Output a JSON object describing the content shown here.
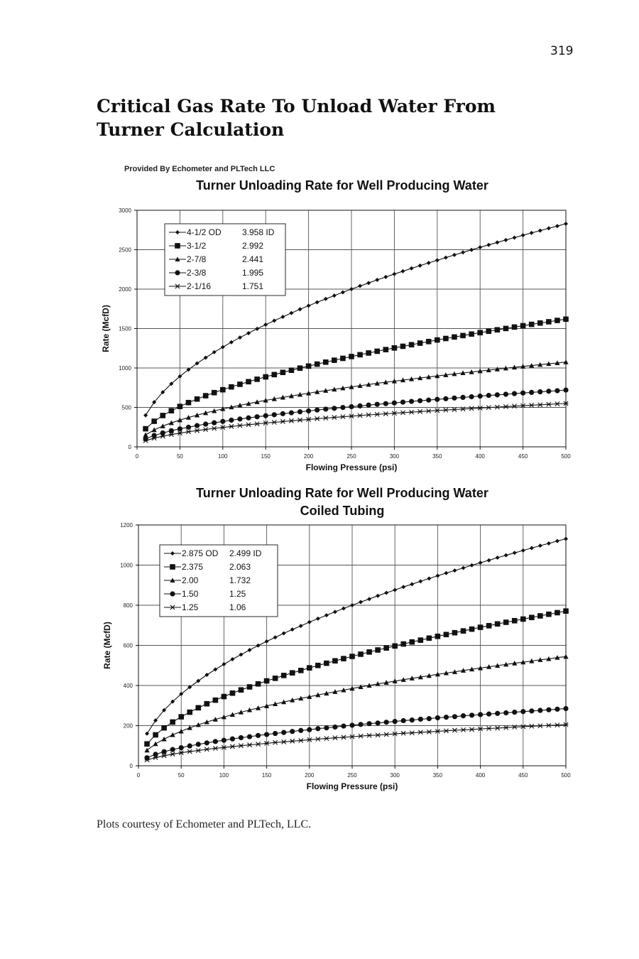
{
  "page": {
    "number": "319",
    "title": "Critical Gas Rate To Unload Water From Turner Calculation",
    "provided_by": "Provided By Echometer and PLTech LLC",
    "caption": "Plots courtesy of Echometer and PLTech, LLC."
  },
  "colors": {
    "ink": "#111111",
    "grid": "#555555",
    "background": "#ffffff"
  },
  "chart_data": [
    {
      "type": "line",
      "title": "Turner Unloading Rate for Well Producing Water",
      "subtitle": "",
      "xlabel": "Flowing Pressure (psi)",
      "ylabel": "Rate (McfD)",
      "xlim": [
        0,
        500
      ],
      "ylim": [
        0,
        3000
      ],
      "xticks": [
        0,
        50,
        100,
        150,
        200,
        250,
        300,
        350,
        400,
        450,
        500
      ],
      "yticks": [
        0,
        500,
        1000,
        1500,
        2000,
        2500,
        3000
      ],
      "grid": true,
      "legend_position": "top-left",
      "x": [
        10,
        20,
        30,
        40,
        50,
        60,
        70,
        80,
        90,
        100,
        110,
        120,
        130,
        140,
        150,
        160,
        170,
        180,
        190,
        200,
        210,
        220,
        230,
        240,
        250,
        260,
        270,
        280,
        290,
        300,
        310,
        320,
        330,
        340,
        350,
        360,
        370,
        380,
        390,
        400,
        410,
        420,
        430,
        440,
        450,
        460,
        470,
        480,
        490,
        500
      ],
      "series": [
        {
          "name": "4-1/2 OD",
          "id_label": "3.958 ID",
          "marker": "diamond",
          "values": [
            400,
            566,
            693,
            800,
            894,
            979,
            1058,
            1131,
            1200,
            1265,
            1327,
            1386,
            1442,
            1497,
            1549,
            1600,
            1649,
            1697,
            1744,
            1789,
            1833,
            1876,
            1918,
            1960,
            2000,
            2040,
            2078,
            2117,
            2154,
            2191,
            2227,
            2263,
            2298,
            2332,
            2366,
            2400,
            2433,
            2466,
            2498,
            2530,
            2561,
            2592,
            2623,
            2653,
            2683,
            2713,
            2742,
            2771,
            2800,
            2829
          ]
        },
        {
          "name": "3-1/2",
          "id_label": "2.992",
          "marker": "square",
          "values": [
            229,
            324,
            397,
            458,
            512,
            561,
            606,
            648,
            687,
            724,
            760,
            793,
            826,
            857,
            887,
            916,
            944,
            971,
            998,
            1024,
            1049,
            1074,
            1098,
            1122,
            1145,
            1168,
            1190,
            1212,
            1233,
            1254,
            1275,
            1295,
            1315,
            1335,
            1355,
            1374,
            1393,
            1411,
            1430,
            1448,
            1466,
            1484,
            1501,
            1519,
            1536,
            1553,
            1570,
            1586,
            1603,
            1619
          ]
        },
        {
          "name": "2-7/8",
          "id_label": "2.441",
          "marker": "triangle",
          "values": [
            152,
            215,
            263,
            304,
            340,
            372,
            402,
            430,
            456,
            481,
            504,
            527,
            548,
            569,
            589,
            608,
            627,
            645,
            663,
            680,
            697,
            713,
            729,
            745,
            760,
            775,
            790,
            805,
            819,
            833,
            846,
            860,
            873,
            886,
            899,
            912,
            925,
            937,
            949,
            961,
            973,
            985,
            997,
            1008,
            1020,
            1031,
            1042,
            1053,
            1064,
            1075
          ]
        },
        {
          "name": "2-3/8",
          "id_label": "1.995",
          "marker": "circle",
          "values": [
            102,
            144,
            176,
            204,
            228,
            249,
            269,
            288,
            305,
            322,
            338,
            353,
            367,
            381,
            394,
            407,
            420,
            432,
            444,
            455,
            467,
            478,
            488,
            499,
            509,
            519,
            529,
            539,
            548,
            557,
            567,
            576,
            585,
            593,
            602,
            610,
            619,
            627,
            635,
            643,
            652,
            659,
            667,
            675,
            683,
            690,
            698,
            705,
            712,
            720
          ]
        },
        {
          "name": "2-1/16",
          "id_label": "1.751",
          "marker": "star",
          "values": [
            78,
            110,
            135,
            156,
            174,
            191,
            206,
            220,
            234,
            246,
            258,
            270,
            281,
            291,
            302,
            311,
            321,
            330,
            339,
            348,
            357,
            365,
            373,
            381,
            389,
            397,
            405,
            412,
            419,
            426,
            433,
            440,
            447,
            454,
            460,
            467,
            473,
            479,
            486,
            492,
            498,
            504,
            510,
            516,
            522,
            528,
            533,
            539,
            545,
            550
          ]
        }
      ]
    },
    {
      "type": "line",
      "title": "Turner Unloading Rate for Well Producing Water",
      "subtitle": "Coiled Tubing",
      "xlabel": "Flowing Pressure (psi)",
      "ylabel": "Rate (McfD)",
      "xlim": [
        0,
        500
      ],
      "ylim": [
        0,
        1200
      ],
      "xticks": [
        0,
        50,
        100,
        150,
        200,
        250,
        300,
        350,
        400,
        450,
        500
      ],
      "yticks": [
        0,
        200,
        400,
        600,
        800,
        1000,
        1200
      ],
      "grid": true,
      "legend_position": "top-left",
      "x": [
        10,
        20,
        30,
        40,
        50,
        60,
        70,
        80,
        90,
        100,
        110,
        120,
        130,
        140,
        150,
        160,
        170,
        180,
        190,
        200,
        210,
        220,
        230,
        240,
        250,
        260,
        270,
        280,
        290,
        300,
        310,
        320,
        330,
        340,
        350,
        360,
        370,
        380,
        390,
        400,
        410,
        420,
        430,
        440,
        450,
        460,
        470,
        480,
        490,
        500
      ],
      "series": [
        {
          "name": "2.875 OD",
          "id_label": "2.499 ID",
          "marker": "diamond",
          "values": [
            160,
            226,
            277,
            320,
            358,
            392,
            423,
            453,
            480,
            506,
            531,
            554,
            577,
            599,
            620,
            640,
            660,
            679,
            697,
            716,
            733,
            750,
            767,
            784,
            800,
            816,
            831,
            847,
            862,
            876,
            891,
            905,
            919,
            933,
            947,
            960,
            973,
            986,
            999,
            1012,
            1024,
            1037,
            1049,
            1061,
            1073,
            1085,
            1097,
            1108,
            1120,
            1131
          ]
        },
        {
          "name": "2.375",
          "id_label": "2.063",
          "marker": "square",
          "values": [
            109,
            154,
            189,
            218,
            244,
            267,
            289,
            309,
            327,
            345,
            362,
            378,
            393,
            408,
            423,
            436,
            450,
            463,
            475,
            488,
            500,
            511,
            523,
            534,
            545,
            556,
            567,
            577,
            587,
            597,
            607,
            617,
            626,
            636,
            645,
            654,
            663,
            672,
            681,
            690,
            698,
            707,
            715,
            723,
            731,
            739,
            747,
            755,
            763,
            771
          ]
        },
        {
          "name": "2.00",
          "id_label": "1.732",
          "marker": "triangle",
          "values": [
            77,
            109,
            133,
            154,
            172,
            189,
            204,
            218,
            231,
            243,
            255,
            267,
            278,
            288,
            298,
            308,
            318,
            327,
            336,
            344,
            353,
            361,
            369,
            377,
            385,
            393,
            400,
            408,
            415,
            422,
            429,
            436,
            442,
            449,
            456,
            462,
            468,
            475,
            481,
            487,
            493,
            499,
            505,
            511,
            516,
            522,
            528,
            533,
            539,
            544
          ]
        },
        {
          "name": "1.50",
          "id_label": "1.25",
          "marker": "circle",
          "values": [
            40,
            57,
            70,
            81,
            90,
            99,
            107,
            114,
            121,
            127,
            134,
            140,
            145,
            151,
            156,
            161,
            166,
            171,
            176,
            180,
            185,
            189,
            193,
            198,
            202,
            206,
            210,
            213,
            217,
            221,
            225,
            228,
            232,
            235,
            239,
            242,
            245,
            249,
            252,
            255,
            258,
            261,
            264,
            267,
            270,
            273,
            276,
            279,
            282,
            285
          ]
        },
        {
          "name": "1.25",
          "id_label": "1.06",
          "marker": "star",
          "values": [
            29,
            41,
            50,
            58,
            65,
            71,
            76,
            82,
            87,
            91,
            96,
            100,
            104,
            108,
            112,
            116,
            119,
            123,
            126,
            130,
            133,
            136,
            139,
            142,
            145,
            148,
            151,
            153,
            156,
            159,
            162,
            164,
            167,
            169,
            172,
            174,
            177,
            179,
            181,
            184,
            186,
            188,
            190,
            193,
            195,
            197,
            199,
            201,
            203,
            205
          ]
        }
      ]
    }
  ]
}
